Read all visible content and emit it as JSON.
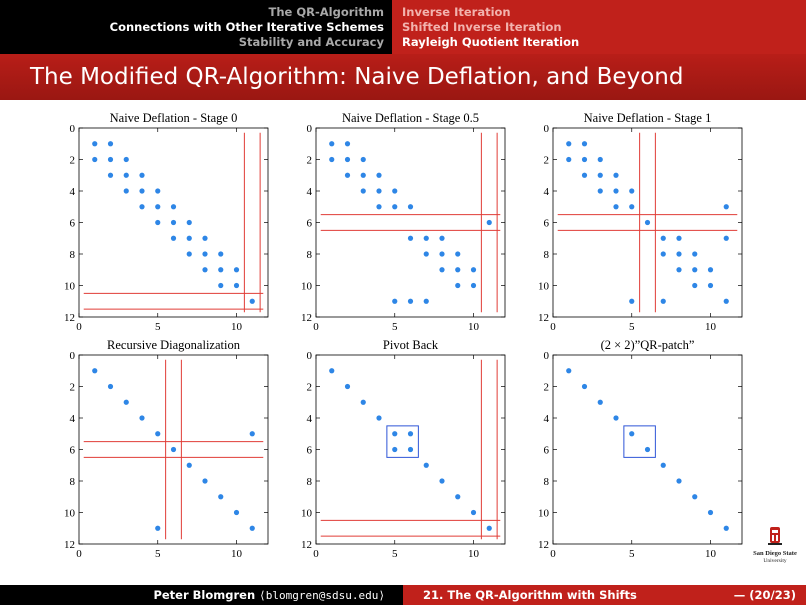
{
  "nav": {
    "sections": [
      "The QR-Algorithm",
      "Connections with Other Iterative Schemes",
      "Stability and Accuracy"
    ],
    "active_section": 1,
    "subsections": [
      "Inverse Iteration",
      "Shifted Inverse Iteration",
      "Rayleigh Quotient Iteration"
    ],
    "active_subsection": 2
  },
  "slide_title": "The Modified QR-Algorithm: Naive Deflation, and Beyond",
  "footer": {
    "author": "Peter Blomgren",
    "email": "⟨blomgren@sdsu.edu⟩",
    "section": "21. The QR-Algorithm with Shifts",
    "page": "— (20/23)"
  },
  "logo": {
    "line1": "San Diego State",
    "line2": "University"
  },
  "colors": {
    "dots": "#2e86e6",
    "lines": "#e03c36",
    "box": "#2e55d8",
    "nav_red": "#c0211b"
  },
  "chart_data": [
    {
      "type": "scatter",
      "title": "Naive Deflation - Stage 0",
      "xlim": [
        0,
        12
      ],
      "ylim": [
        12,
        0
      ],
      "xticks": [
        "0",
        "5",
        "10"
      ],
      "yticks": [
        "0",
        "2",
        "4",
        "6",
        "8",
        "10",
        "12"
      ],
      "points": [
        [
          1,
          1
        ],
        [
          2,
          1
        ],
        [
          1,
          2
        ],
        [
          2,
          2
        ],
        [
          2,
          3
        ],
        [
          3,
          2
        ],
        [
          3,
          3
        ],
        [
          3,
          4
        ],
        [
          4,
          3
        ],
        [
          4,
          4
        ],
        [
          4,
          5
        ],
        [
          5,
          4
        ],
        [
          5,
          5
        ],
        [
          5,
          6
        ],
        [
          6,
          5
        ],
        [
          6,
          6
        ],
        [
          6,
          7
        ],
        [
          7,
          6
        ],
        [
          7,
          7
        ],
        [
          7,
          8
        ],
        [
          8,
          7
        ],
        [
          8,
          8
        ],
        [
          8,
          9
        ],
        [
          9,
          8
        ],
        [
          9,
          9
        ],
        [
          9,
          10
        ],
        [
          10,
          9
        ],
        [
          10,
          10
        ],
        [
          11,
          11
        ]
      ],
      "hlines": [
        10.5,
        11.5
      ],
      "vlines": [
        10.5,
        11.5
      ],
      "boxes": []
    },
    {
      "type": "scatter",
      "title": "Naive Deflation - Stage 0.5",
      "xlim": [
        0,
        12
      ],
      "ylim": [
        12,
        0
      ],
      "xticks": [
        "0",
        "5",
        "10"
      ],
      "yticks": [
        "0",
        "2",
        "4",
        "6",
        "8",
        "10",
        "12"
      ],
      "points": [
        [
          1,
          1
        ],
        [
          2,
          1
        ],
        [
          1,
          2
        ],
        [
          2,
          2
        ],
        [
          2,
          3
        ],
        [
          3,
          2
        ],
        [
          3,
          3
        ],
        [
          3,
          4
        ],
        [
          4,
          3
        ],
        [
          4,
          4
        ],
        [
          4,
          5
        ],
        [
          5,
          4
        ],
        [
          5,
          5
        ],
        [
          6,
          5
        ],
        [
          11,
          6
        ],
        [
          6,
          7
        ],
        [
          7,
          7
        ],
        [
          8,
          7
        ],
        [
          7,
          8
        ],
        [
          8,
          8
        ],
        [
          9,
          8
        ],
        [
          8,
          9
        ],
        [
          9,
          9
        ],
        [
          10,
          9
        ],
        [
          9,
          10
        ],
        [
          10,
          10
        ],
        [
          5,
          11
        ],
        [
          6,
          11
        ],
        [
          7,
          11
        ]
      ],
      "hlines": [
        5.5,
        6.5
      ],
      "vlines": [
        10.5,
        11.5
      ],
      "boxes": []
    },
    {
      "type": "scatter",
      "title": "Naive Deflation - Stage 1",
      "xlim": [
        0,
        12
      ],
      "ylim": [
        12,
        0
      ],
      "xticks": [
        "0",
        "5",
        "10"
      ],
      "yticks": [
        "0",
        "2",
        "4",
        "6",
        "8",
        "10",
        "12"
      ],
      "points": [
        [
          1,
          1
        ],
        [
          2,
          1
        ],
        [
          1,
          2
        ],
        [
          2,
          2
        ],
        [
          2,
          3
        ],
        [
          3,
          2
        ],
        [
          3,
          3
        ],
        [
          3,
          4
        ],
        [
          4,
          3
        ],
        [
          4,
          4
        ],
        [
          4,
          5
        ],
        [
          5,
          4
        ],
        [
          5,
          5
        ],
        [
          11,
          5
        ],
        [
          6,
          6
        ],
        [
          7,
          7
        ],
        [
          8,
          7
        ],
        [
          11,
          7
        ],
        [
          7,
          8
        ],
        [
          8,
          8
        ],
        [
          9,
          8
        ],
        [
          8,
          9
        ],
        [
          9,
          9
        ],
        [
          10,
          9
        ],
        [
          9,
          10
        ],
        [
          10,
          10
        ],
        [
          5,
          11
        ],
        [
          7,
          11
        ],
        [
          11,
          11
        ]
      ],
      "hlines": [
        5.5,
        6.5
      ],
      "vlines": [
        5.5,
        6.5
      ],
      "boxes": []
    },
    {
      "type": "scatter",
      "title": "Recursive Diagonalization",
      "xlim": [
        0,
        12
      ],
      "ylim": [
        12,
        0
      ],
      "xticks": [
        "0",
        "5",
        "10"
      ],
      "yticks": [
        "0",
        "2",
        "4",
        "6",
        "8",
        "10",
        "12"
      ],
      "points": [
        [
          1,
          1
        ],
        [
          2,
          2
        ],
        [
          3,
          3
        ],
        [
          4,
          4
        ],
        [
          5,
          5
        ],
        [
          11,
          5
        ],
        [
          6,
          6
        ],
        [
          7,
          7
        ],
        [
          8,
          8
        ],
        [
          9,
          9
        ],
        [
          10,
          10
        ],
        [
          5,
          11
        ],
        [
          11,
          11
        ]
      ],
      "hlines": [
        5.5,
        6.5
      ],
      "vlines": [
        5.5,
        6.5
      ],
      "boxes": []
    },
    {
      "type": "scatter",
      "title": "Pivot Back",
      "xlim": [
        0,
        12
      ],
      "ylim": [
        12,
        0
      ],
      "xticks": [
        "0",
        "5",
        "10"
      ],
      "yticks": [
        "0",
        "2",
        "4",
        "6",
        "8",
        "10",
        "12"
      ],
      "points": [
        [
          1,
          1
        ],
        [
          2,
          2
        ],
        [
          3,
          3
        ],
        [
          4,
          4
        ],
        [
          5,
          5
        ],
        [
          6,
          5
        ],
        [
          5,
          6
        ],
        [
          6,
          6
        ],
        [
          7,
          7
        ],
        [
          8,
          8
        ],
        [
          9,
          9
        ],
        [
          10,
          10
        ],
        [
          11,
          11
        ]
      ],
      "hlines": [
        10.5,
        11.5
      ],
      "vlines": [
        10.5,
        11.5
      ],
      "boxes": [
        [
          4.5,
          4.5,
          6.5,
          6.5
        ]
      ]
    },
    {
      "type": "scatter",
      "title": "(2 × 2)”QR-patch”",
      "xlim": [
        0,
        12
      ],
      "ylim": [
        12,
        0
      ],
      "xticks": [
        "0",
        "5",
        "10"
      ],
      "yticks": [
        "0",
        "2",
        "4",
        "6",
        "8",
        "10",
        "12"
      ],
      "points": [
        [
          1,
          1
        ],
        [
          2,
          2
        ],
        [
          3,
          3
        ],
        [
          4,
          4
        ],
        [
          5,
          5
        ],
        [
          6,
          6
        ],
        [
          7,
          7
        ],
        [
          8,
          8
        ],
        [
          9,
          9
        ],
        [
          10,
          10
        ],
        [
          11,
          11
        ]
      ],
      "hlines": [],
      "vlines": [],
      "boxes": [
        [
          4.5,
          4.5,
          6.5,
          6.5
        ]
      ]
    }
  ]
}
